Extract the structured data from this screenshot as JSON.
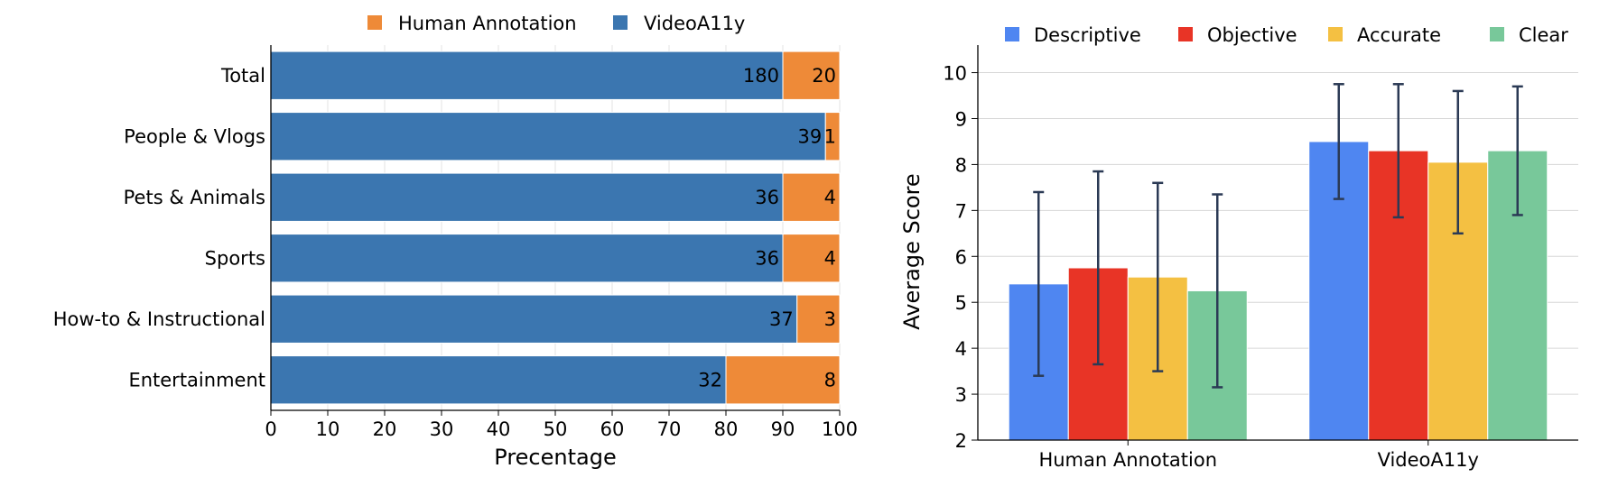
{
  "chart_data": [
    {
      "type": "bar",
      "orientation": "horizontal",
      "stacked": true,
      "categories": [
        "Total",
        "People & Vlogs",
        "Pets & Animals",
        "Sports",
        "How-to & Instructional",
        "Entertainment"
      ],
      "series": [
        {
          "name": "VideoA11y",
          "color": "#3b76b0",
          "values": [
            90,
            97.5,
            90,
            90,
            92.5,
            80
          ],
          "labels": [
            "180",
            "39",
            "36",
            "36",
            "37",
            "32"
          ]
        },
        {
          "name": "Human Annotation",
          "color": "#ee8a38",
          "values": [
            10,
            2.5,
            10,
            10,
            7.5,
            20
          ],
          "labels": [
            "20",
            "1",
            "4",
            "4",
            "3",
            "8"
          ]
        }
      ],
      "legend_order": [
        "Human Annotation",
        "VideoA11y"
      ],
      "xlabel": "Precentage",
      "xlim": [
        0,
        100
      ],
      "xticks": [
        "0",
        "10",
        "20",
        "30",
        "40",
        "50",
        "60",
        "70",
        "80",
        "90",
        "100"
      ],
      "grid": true,
      "legend_position": "top"
    },
    {
      "type": "bar",
      "grouped": true,
      "error_bars": true,
      "categories": [
        "Human Annotation",
        "VideoA11y"
      ],
      "series": [
        {
          "name": "Descriptive",
          "color": "#4f86f1",
          "values": [
            5.4,
            8.5
          ],
          "error": [
            2.0,
            1.25
          ]
        },
        {
          "name": "Objective",
          "color": "#e83426",
          "values": [
            5.75,
            8.3
          ],
          "error": [
            2.1,
            1.45
          ]
        },
        {
          "name": "Accurate",
          "color": "#f4c042",
          "values": [
            5.55,
            8.05
          ],
          "error": [
            2.05,
            1.55
          ]
        },
        {
          "name": "Clear",
          "color": "#78c89a",
          "values": [
            5.25,
            8.3
          ],
          "error": [
            2.1,
            1.4
          ]
        }
      ],
      "ylabel": "Average Score",
      "ylim": [
        2,
        10.6
      ],
      "yticks": [
        "2",
        "3",
        "4",
        "5",
        "6",
        "7",
        "8",
        "9",
        "10"
      ],
      "grid": true,
      "legend_position": "top"
    }
  ]
}
